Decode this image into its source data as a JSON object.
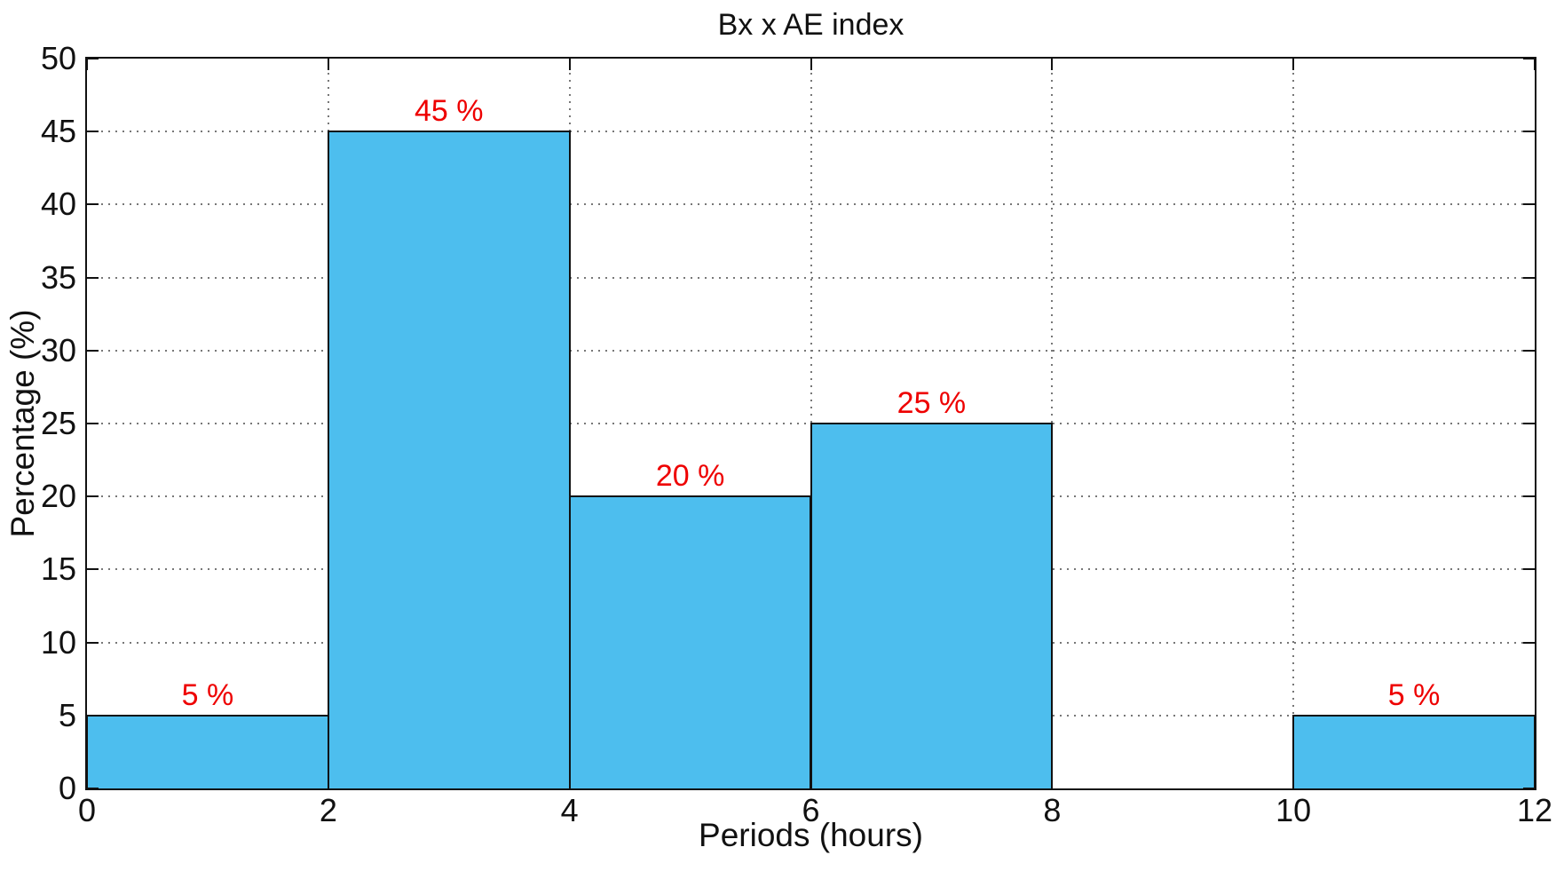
{
  "chart_data": {
    "type": "bar",
    "title": "Bx x AE index",
    "xlabel": "Periods (hours)",
    "ylabel": "Percentage (%)",
    "xlim": [
      0,
      12
    ],
    "ylim": [
      0,
      50
    ],
    "x_tick_values": [
      0,
      2,
      4,
      6,
      8,
      10,
      12
    ],
    "x_tick_labels": [
      "0",
      "2",
      "4",
      "6",
      "8",
      "10",
      "12"
    ],
    "y_tick_values": [
      0,
      5,
      10,
      15,
      20,
      25,
      30,
      35,
      40,
      45,
      50
    ],
    "y_tick_labels": [
      "0",
      "5",
      "10",
      "15",
      "20",
      "25",
      "30",
      "35",
      "40",
      "45",
      "50"
    ],
    "grid": "dotted",
    "legend_position": "none",
    "bins": [
      {
        "range": [
          0,
          2
        ],
        "value": 5,
        "label": "5 %"
      },
      {
        "range": [
          2,
          4
        ],
        "value": 45,
        "label": "45 %"
      },
      {
        "range": [
          4,
          6
        ],
        "value": 20,
        "label": "20 %"
      },
      {
        "range": [
          6,
          8
        ],
        "value": 25,
        "label": "25 %"
      },
      {
        "range": [
          8,
          10
        ],
        "value": 0,
        "label": ""
      },
      {
        "range": [
          10,
          12
        ],
        "value": 5,
        "label": "5 %"
      }
    ],
    "colors": {
      "bar_fill": "#4dbeee",
      "bar_edge": "#111111",
      "value_label": "#ee0000",
      "grid": "#777777",
      "axis": "#111111",
      "background": "#ffffff"
    }
  }
}
